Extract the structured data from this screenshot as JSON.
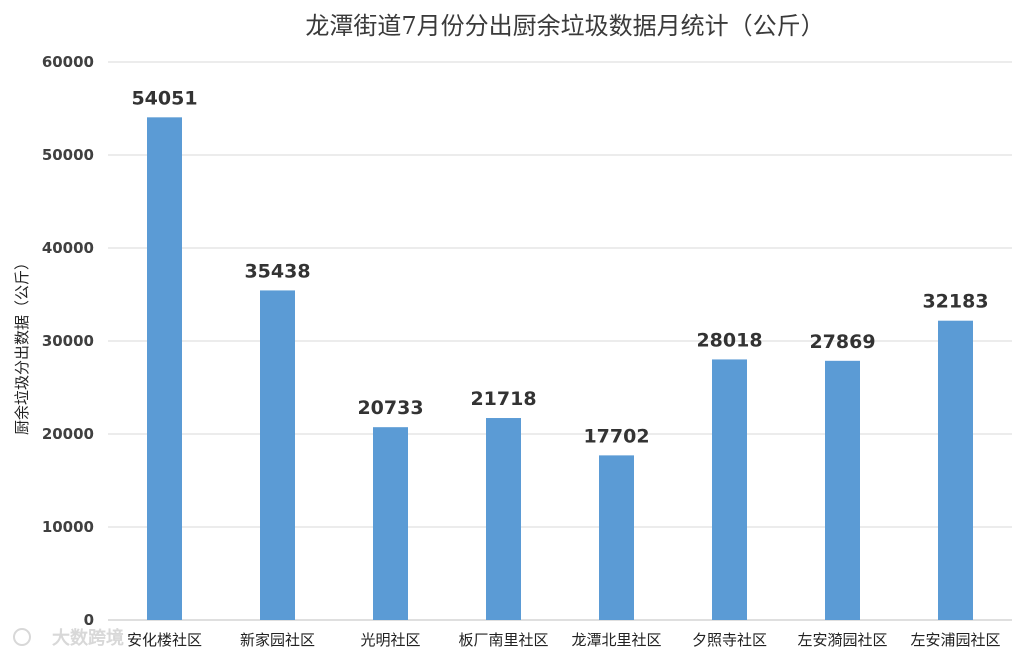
{
  "chart_data": {
    "type": "bar",
    "title": "龙潭街道7月份分出厨余垃圾数据月统计（公斤）",
    "xlabel": "",
    "ylabel": "厨余垃圾分出数据（公斤）",
    "categories": [
      "安化楼社区",
      "新家园社区",
      "光明社区",
      "板厂南里社区",
      "龙潭北里社区",
      "夕照寺社区",
      "左安漪园社区",
      "左安浦园社区"
    ],
    "values": [
      54051,
      35438,
      20733,
      21718,
      17702,
      28018,
      27869,
      32183
    ],
    "yticks": [
      "0",
      "10000",
      "20000",
      "30000",
      "40000",
      "50000",
      "60000"
    ],
    "ylim": [
      0,
      60000
    ],
    "grid": true,
    "data_labels": true,
    "legend": "none",
    "bar_color": "#5b9bd5"
  },
  "watermark": "大数跨境"
}
